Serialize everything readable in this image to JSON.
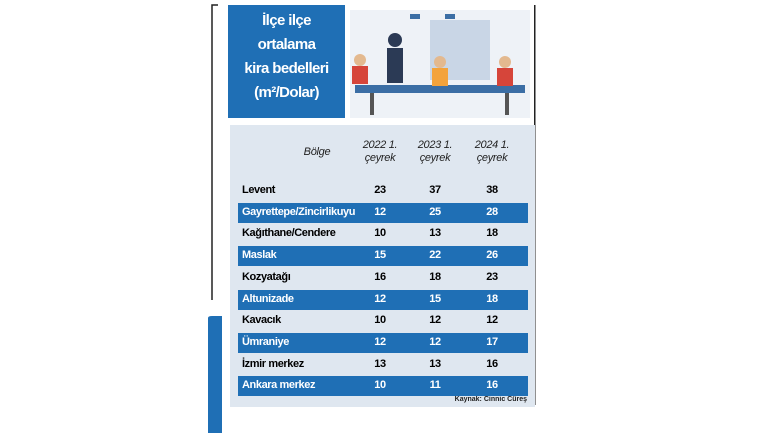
{
  "header": {
    "title": [
      "İlçe ilçe",
      "ortalama",
      "kira bedelleri",
      "(m²/Dolar)"
    ]
  },
  "table": {
    "columns": [
      "Bölge",
      "2022 1. çeyrek",
      "2023 1. çeyrek",
      "2024 1. çeyrek"
    ],
    "rows": [
      [
        "Levent",
        23,
        37,
        38
      ],
      [
        "Gayrettepe/Zincirlikuyu",
        12,
        25,
        28
      ],
      [
        "Kağıthane/Cendere",
        10,
        13,
        18
      ],
      [
        "Maslak",
        15,
        22,
        26
      ],
      [
        "Kozyatağı",
        16,
        18,
        23
      ],
      [
        "Altunizade",
        12,
        15,
        18
      ],
      [
        "Kavacık",
        10,
        12,
        12
      ],
      [
        "Ümraniye",
        12,
        12,
        17
      ],
      [
        "İzmir merkez",
        13,
        13,
        16
      ],
      [
        "Ankara merkez",
        10,
        11,
        16
      ]
    ]
  },
  "source": "Kaynak: Cinnic Cüreş"
}
